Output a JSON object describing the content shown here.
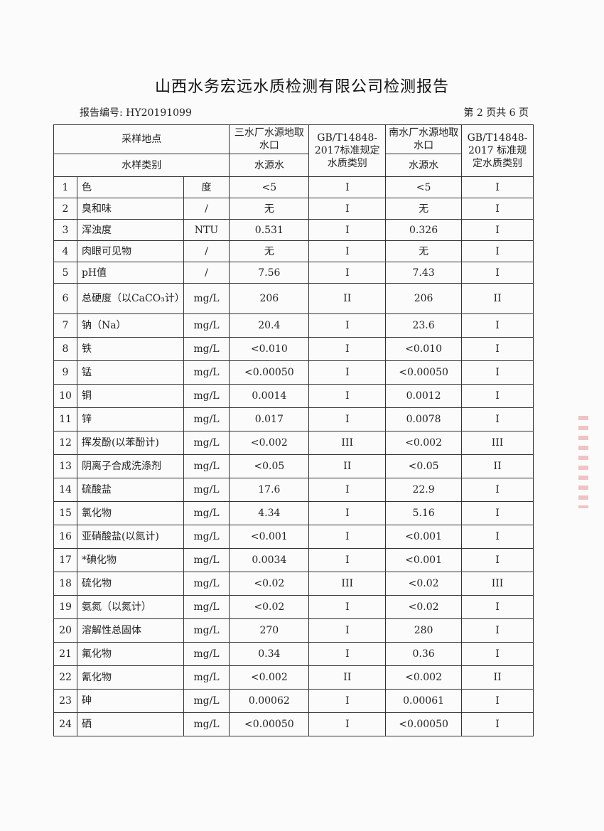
{
  "title": "山西水务宏远水质检测有限公司检测报告",
  "report_number": "报告编号: HY20191099",
  "page_number": "第 2 页共 6 页",
  "header": {
    "sampling_site_label": "采样地点",
    "sample_type_label": "水样类别",
    "site1": "三水厂水源地取水口",
    "site1_type": "水源水",
    "standard1": "GB/T14848-2017标准规定水质类别",
    "site2": "南水厂水源地取水口",
    "site2_type": "水源水",
    "standard2": "GB/T14848-2017 标准规定水质类别"
  },
  "rows": [
    {
      "no": "1",
      "item": "色",
      "unit": "度",
      "v1": "<5",
      "c1": "I",
      "v2": "<5",
      "c2": "I"
    },
    {
      "no": "2",
      "item": "臭和味",
      "unit": "/",
      "v1": "无",
      "c1": "I",
      "v2": "无",
      "c2": "I"
    },
    {
      "no": "3",
      "item": "浑浊度",
      "unit": "NTU",
      "v1": "0.531",
      "c1": "I",
      "v2": "0.326",
      "c2": "I"
    },
    {
      "no": "4",
      "item": "肉眼可见物",
      "unit": "/",
      "v1": "无",
      "c1": "I",
      "v2": "无",
      "c2": "I"
    },
    {
      "no": "5",
      "item": "pH值",
      "unit": "/",
      "v1": "7.56",
      "c1": "I",
      "v2": "7.43",
      "c2": "I"
    },
    {
      "no": "6",
      "item": "总硬度（以CaCO₃计）",
      "unit": "mg/L",
      "v1": "206",
      "c1": "II",
      "v2": "206",
      "c2": "II"
    },
    {
      "no": "7",
      "item": "钠（Na）",
      "unit": "mg/L",
      "v1": "20.4",
      "c1": "I",
      "v2": "23.6",
      "c2": "I"
    },
    {
      "no": "8",
      "item": "铁",
      "unit": "mg/L",
      "v1": "<0.010",
      "c1": "I",
      "v2": "<0.010",
      "c2": "I"
    },
    {
      "no": "9",
      "item": "锰",
      "unit": "mg/L",
      "v1": "<0.00050",
      "c1": "I",
      "v2": "<0.00050",
      "c2": "I"
    },
    {
      "no": "10",
      "item": "铜",
      "unit": "mg/L",
      "v1": "0.0014",
      "c1": "I",
      "v2": "0.0012",
      "c2": "I"
    },
    {
      "no": "11",
      "item": "锌",
      "unit": "mg/L",
      "v1": "0.017",
      "c1": "I",
      "v2": "0.0078",
      "c2": "I"
    },
    {
      "no": "12",
      "item": "挥发酚(以苯酚计)",
      "unit": "mg/L",
      "v1": "<0.002",
      "c1": "III",
      "v2": "<0.002",
      "c2": "III"
    },
    {
      "no": "13",
      "item": "阴离子合成洗涤剂",
      "unit": "mg/L",
      "v1": "<0.05",
      "c1": "II",
      "v2": "<0.05",
      "c2": "II"
    },
    {
      "no": "14",
      "item": "硫酸盐",
      "unit": "mg/L",
      "v1": "17.6",
      "c1": "I",
      "v2": "22.9",
      "c2": "I"
    },
    {
      "no": "15",
      "item": "氯化物",
      "unit": "mg/L",
      "v1": "4.34",
      "c1": "I",
      "v2": "5.16",
      "c2": "I"
    },
    {
      "no": "16",
      "item": "亚硝酸盐(以氮计)",
      "unit": "mg/L",
      "v1": "<0.001",
      "c1": "I",
      "v2": "<0.001",
      "c2": "I"
    },
    {
      "no": "17",
      "item": "*碘化物",
      "unit": "mg/L",
      "v1": "0.0034",
      "c1": "I",
      "v2": "<0.001",
      "c2": "I"
    },
    {
      "no": "18",
      "item": "硫化物",
      "unit": "mg/L",
      "v1": "<0.02",
      "c1": "III",
      "v2": "<0.02",
      "c2": "III"
    },
    {
      "no": "19",
      "item": "氨氮（以氮计）",
      "unit": "mg/L",
      "v1": "<0.02",
      "c1": "I",
      "v2": "<0.02",
      "c2": "I"
    },
    {
      "no": "20",
      "item": "溶解性总固体",
      "unit": "mg/L",
      "v1": "270",
      "c1": "I",
      "v2": "280",
      "c2": "I"
    },
    {
      "no": "21",
      "item": "氟化物",
      "unit": "mg/L",
      "v1": "0.34",
      "c1": "I",
      "v2": "0.36",
      "c2": "I"
    },
    {
      "no": "22",
      "item": "氰化物",
      "unit": "mg/L",
      "v1": "<0.002",
      "c1": "II",
      "v2": "<0.002",
      "c2": "II"
    },
    {
      "no": "23",
      "item": "砷",
      "unit": "mg/L",
      "v1": "0.00062",
      "c1": "I",
      "v2": "0.00061",
      "c2": "I"
    },
    {
      "no": "24",
      "item": "硒",
      "unit": "mg/L",
      "v1": "<0.00050",
      "c1": "I",
      "v2": "<0.00050",
      "c2": "I"
    }
  ]
}
